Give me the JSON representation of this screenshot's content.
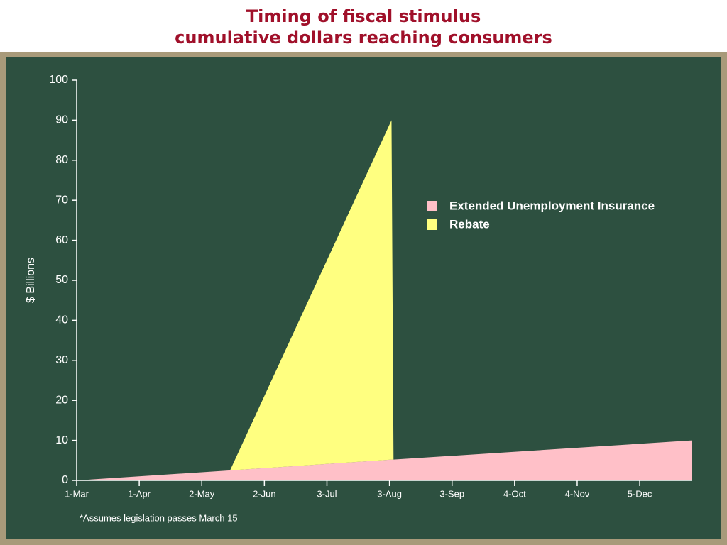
{
  "chart_data": {
    "type": "stacked-area",
    "title": "Timing of fiscal stimulus",
    "subtitle": "cumulative dollars reaching consumers",
    "y_label": "$ Billions",
    "annotation": "*Assumes legislation passes March 15",
    "x": [
      "1-Mar",
      "16-May",
      "4-Aug",
      "5-Aug",
      "31-Dec"
    ],
    "xlim": [
      "1-Mar",
      "31-Dec"
    ],
    "xticks": [
      "1-Mar",
      "1-Apr",
      "2-May",
      "2-Jun",
      "3-Jul",
      "3-Aug",
      "3-Sep",
      "4-Oct",
      "4-Nov",
      "5-Dec"
    ],
    "ylim": [
      0,
      100
    ],
    "yticks": [
      0,
      10,
      20,
      30,
      40,
      50,
      60,
      70,
      80,
      90,
      100
    ],
    "series": [
      {
        "name": "Extended Unemployment Insurance",
        "color": "#ffc0c8",
        "values": [
          0,
          2.5,
          5.2,
          5.2,
          10
        ]
      },
      {
        "name": "Rebate",
        "color": "#ffff80",
        "values": [
          0,
          0,
          84.8,
          0,
          0
        ]
      }
    ],
    "legend": "right"
  }
}
